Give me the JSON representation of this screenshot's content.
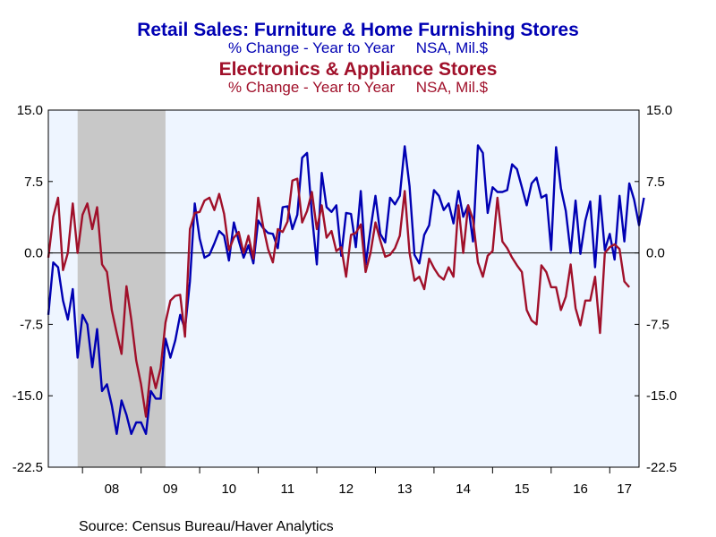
{
  "chart_data": {
    "type": "line",
    "titles": [
      {
        "text": "Retail Sales: Furniture & Home Furnishing Stores",
        "color": "#0000B3",
        "style": "main"
      },
      {
        "text": "% Change - Year to Year     NSA, Mil.$",
        "color": "#0000B3",
        "style": "sub"
      },
      {
        "text": "Electronics & Appliance Stores",
        "color": "#A0102A",
        "style": "main"
      },
      {
        "text": "% Change - Year to Year     NSA, Mil.$",
        "color": "#A0102A",
        "style": "sub"
      }
    ],
    "ylim": [
      -22.5,
      15.0
    ],
    "yticks": [
      15.0,
      7.5,
      0.0,
      -7.5,
      -15.0,
      -22.5
    ],
    "ytick_labels_left": [
      "15.0",
      "7.5",
      "0.0",
      "-7.5",
      "-15.0",
      "-22.5"
    ],
    "ytick_labels_right": [
      "15.0",
      "7.5",
      "0.0",
      "-7.5",
      "-15.0",
      "-22.5"
    ],
    "x_start": "2007-06",
    "x_end": "2017-07",
    "xtick_labels": [
      "08",
      "09",
      "10",
      "11",
      "12",
      "13",
      "14",
      "15",
      "16",
      "17"
    ],
    "grid": false,
    "zero_line": true,
    "recession": {
      "start": "2007-12",
      "end": "2009-06",
      "color": "#C8C8C8"
    },
    "plot_background": "#EEF5FF",
    "series": [
      {
        "color": "#0000B3",
        "values": [
          -6.5,
          -1.0,
          -1.5,
          -5.0,
          -7.0,
          -3.8,
          -11.0,
          -6.5,
          -7.5,
          -12.0,
          -8.0,
          -14.5,
          -13.8,
          -16.0,
          -19.0,
          -15.5,
          -17.0,
          -19.0,
          -17.8,
          -17.8,
          -19.0,
          -14.5,
          -15.3,
          -15.3,
          -9.0,
          -11.0,
          -9.2,
          -6.5,
          -8.0,
          -3.0,
          5.2,
          1.5,
          -0.5,
          -0.2,
          1.0,
          2.3,
          1.8,
          -0.8,
          3.2,
          1.3,
          -0.5,
          0.8,
          -1.1,
          3.4,
          2.6,
          2.1,
          2.0,
          0.5,
          4.8,
          4.9,
          2.5,
          4.0,
          10.0,
          10.5,
          4.0,
          -1.2,
          8.4,
          4.8,
          4.3,
          5.0,
          -0.3,
          4.2,
          4.1,
          0.6,
          6.5,
          -1.2,
          2.5,
          6.0,
          2.0,
          1.1,
          5.8,
          5.1,
          6.0,
          11.2,
          7.0,
          -0.2,
          -1.1,
          1.9,
          2.9,
          6.6,
          6.0,
          4.5,
          5.2,
          3.1,
          6.5,
          3.8,
          5.0,
          1.2,
          11.3,
          10.5,
          4.2,
          6.9,
          6.4,
          6.4,
          6.6,
          9.3,
          8.8,
          6.9,
          5.0,
          7.3,
          7.9,
          5.8,
          6.1,
          0.3,
          11.1,
          6.8,
          4.4,
          0.0,
          5.5,
          -0.1,
          3.4,
          5.4,
          -1.5,
          6.0,
          0.3,
          2.0,
          -0.7,
          6.0,
          1.2,
          7.3,
          5.6,
          2.9,
          5.8
        ]
      },
      {
        "color": "#A0102A",
        "values": [
          -0.5,
          3.8,
          5.8,
          -1.8,
          0.0,
          5.2,
          0.0,
          4.0,
          5.2,
          2.5,
          4.8,
          -1.2,
          -2.0,
          -6.0,
          -8.4,
          -10.6,
          -3.5,
          -7.0,
          -11.3,
          -13.8,
          -17.2,
          -12.0,
          -14.2,
          -12.1,
          -7.3,
          -5.0,
          -4.5,
          -4.4,
          -8.8,
          2.5,
          4.2,
          4.3,
          5.5,
          5.8,
          4.5,
          6.2,
          4.1,
          0.3,
          1.6,
          2.2,
          0.0,
          1.8,
          -0.6,
          5.8,
          2.8,
          0.4,
          -1.0,
          2.5,
          2.2,
          3.3,
          7.6,
          7.8,
          3.2,
          4.4,
          6.4,
          2.5,
          5.0,
          1.6,
          2.3,
          0.2,
          0.6,
          -2.5,
          1.9,
          2.1,
          3.0,
          -2.0,
          0.0,
          3.2,
          1.3,
          -0.4,
          -0.2,
          0.5,
          1.8,
          6.5,
          0.0,
          -2.9,
          -2.5,
          -3.8,
          -0.6,
          -1.6,
          -2.4,
          -2.8,
          -1.5,
          -2.5,
          5.0,
          0.0,
          5.0,
          3.5,
          -1.0,
          -2.5,
          -0.3,
          0.2,
          5.8,
          1.2,
          0.5,
          -0.5,
          -1.3,
          -2.0,
          -6.0,
          -7.1,
          -7.5,
          -1.3,
          -2.0,
          -3.6,
          -3.6,
          -6.0,
          -4.6,
          -1.2,
          -5.8,
          -7.6,
          -5.0,
          -5.0,
          -2.5,
          -8.4,
          0.0,
          0.6,
          0.9,
          0.4,
          -3.0,
          -3.6
        ]
      }
    ],
    "source": "Source:  Census Bureau/Haver Analytics"
  }
}
